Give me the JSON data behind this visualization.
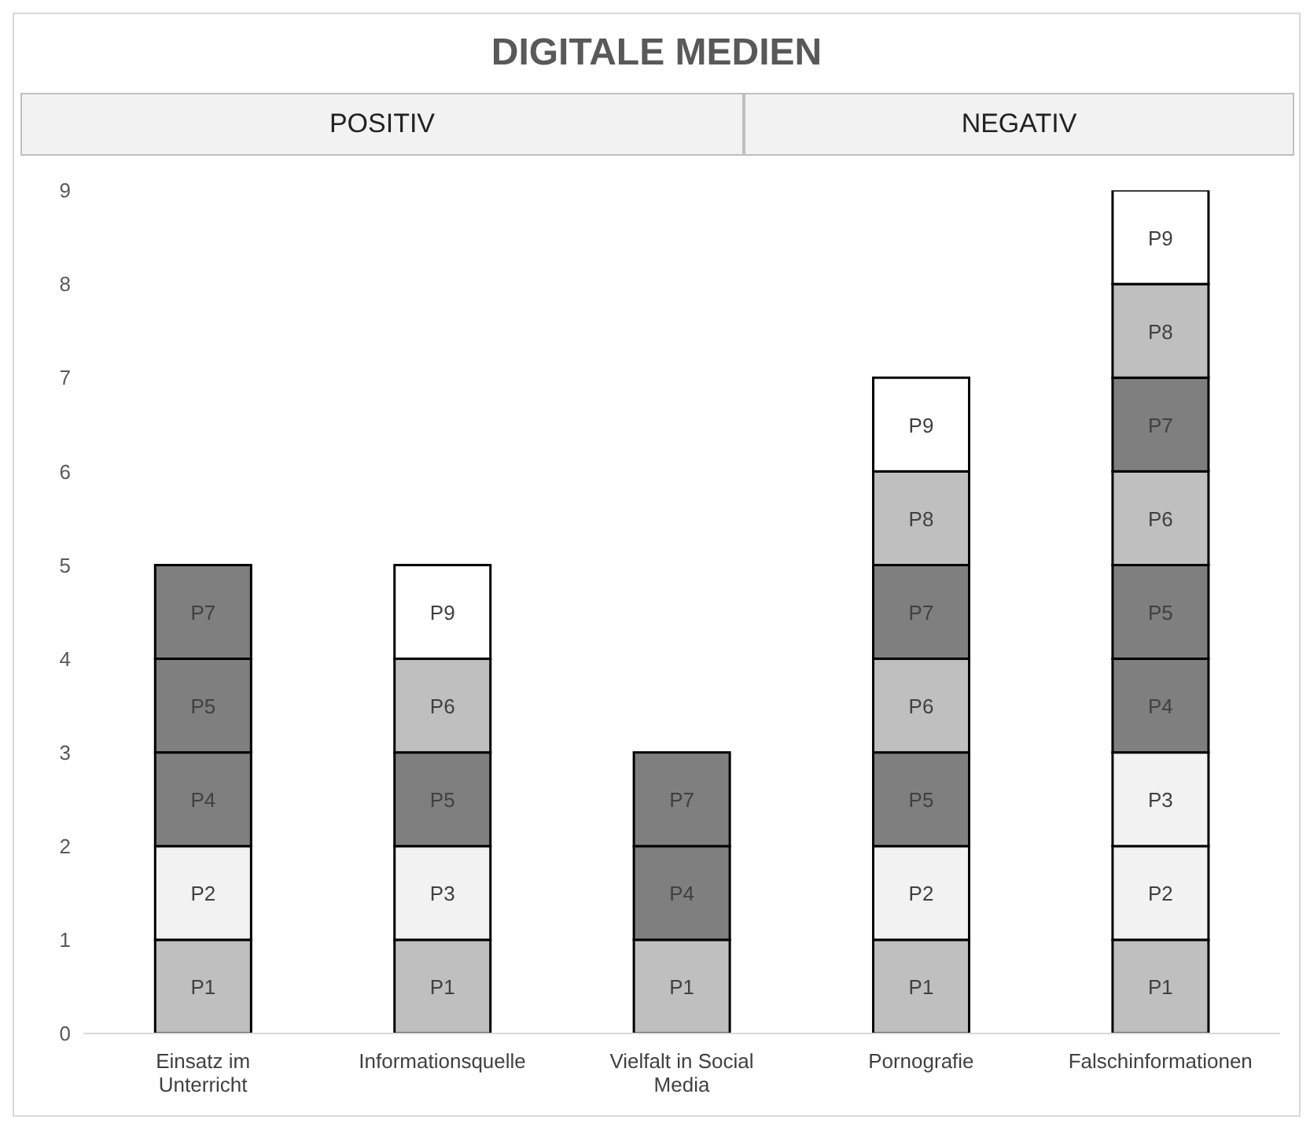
{
  "chart_data": {
    "type": "bar",
    "stacked": true,
    "title": "DIGITALE MEDIEN",
    "annotations": [
      "POSITIV",
      "NEGATIV"
    ],
    "categories": [
      "Einsatz im Unterricht",
      "Informationsquelle",
      "Vielfalt in Social Media",
      "Pornografie",
      "Falschinformationen"
    ],
    "ylim": [
      0,
      9
    ],
    "yticks": [
      0,
      1,
      2,
      3,
      4,
      5,
      6,
      7,
      8,
      9
    ],
    "grid": false,
    "legend": false,
    "series": [
      {
        "color": "#bfbfbf",
        "values": [
          1,
          1,
          1,
          1,
          1
        ],
        "value_labels": [
          "P1",
          "P1",
          "P1",
          "P1",
          "P1"
        ]
      },
      {
        "color": "#f2f2f2",
        "values": [
          1,
          null,
          null,
          1,
          1
        ],
        "value_labels": [
          "P2",
          null,
          null,
          "P2",
          "P2"
        ]
      },
      {
        "color": "#f2f2f2",
        "values": [
          null,
          1,
          null,
          null,
          1
        ],
        "value_labels": [
          null,
          "P3",
          null,
          null,
          "P3"
        ]
      },
      {
        "color": "#7f7f7f",
        "values": [
          1,
          null,
          1,
          null,
          1
        ],
        "value_labels": [
          "P4",
          null,
          "P4",
          null,
          "P4"
        ]
      },
      {
        "color": "#7f7f7f",
        "values": [
          1,
          1,
          null,
          1,
          1
        ],
        "value_labels": [
          "P5",
          "P5",
          null,
          "P5",
          "P5"
        ]
      },
      {
        "color": "#bfbfbf",
        "values": [
          null,
          1,
          null,
          1,
          1
        ],
        "value_labels": [
          null,
          "P6",
          null,
          "P6",
          "P6"
        ]
      },
      {
        "color": "#7f7f7f",
        "values": [
          1,
          null,
          1,
          1,
          1
        ],
        "value_labels": [
          "P7",
          null,
          "P7",
          "P7",
          "P7"
        ]
      },
      {
        "color": "#bfbfbf",
        "values": [
          null,
          null,
          null,
          1,
          1
        ],
        "value_labels": [
          null,
          null,
          null,
          "P8",
          "P8"
        ]
      },
      {
        "color": "#ffffff",
        "values": [
          null,
          1,
          null,
          1,
          1
        ],
        "value_labels": [
          null,
          "P9",
          null,
          "P9",
          "P9"
        ]
      }
    ]
  }
}
